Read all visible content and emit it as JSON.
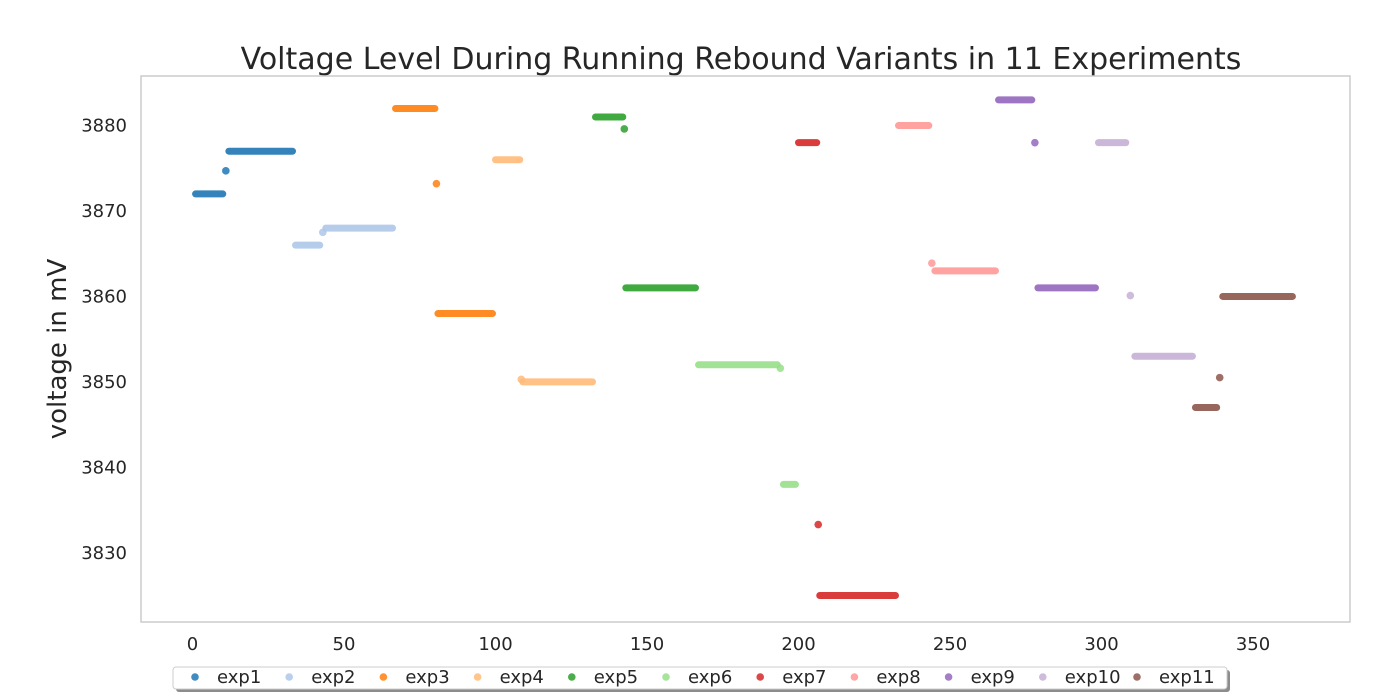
{
  "chart_data": {
    "type": "scatter",
    "title": "Voltage Level During Running Rebound Variants in 11 Experiments",
    "xlabel": "",
    "ylabel": "voltage  in mV",
    "xlim": [
      -17,
      382
    ],
    "ylim": [
      3821.9,
      3885.8
    ],
    "xticks": [
      0,
      50,
      100,
      150,
      200,
      250,
      300,
      350
    ],
    "yticks": [
      3830,
      3840,
      3850,
      3860,
      3870,
      3880
    ],
    "grid": false,
    "legend": "bottom-center",
    "series": [
      {
        "name": "exp1",
        "color": "#1f77b4",
        "points": [
          [
            1,
            3872
          ],
          [
            10,
            3872
          ],
          [
            11,
            3874.7
          ],
          [
            12,
            3877
          ],
          [
            33,
            3877
          ]
        ]
      },
      {
        "name": "exp2",
        "color": "#aec7e8",
        "points": [
          [
            34,
            3866
          ],
          [
            42,
            3866
          ],
          [
            43,
            3867.5
          ],
          [
            44,
            3868
          ],
          [
            66,
            3868
          ]
        ]
      },
      {
        "name": "exp3",
        "color": "#ff7f0e",
        "points": [
          [
            67,
            3882
          ],
          [
            80,
            3882
          ],
          [
            80.5,
            3873.2
          ],
          [
            81,
            3858
          ],
          [
            99,
            3858
          ]
        ]
      },
      {
        "name": "exp4",
        "color": "#ffbb78",
        "points": [
          [
            100,
            3876
          ],
          [
            108,
            3876
          ],
          [
            108.5,
            3850.3
          ],
          [
            109,
            3850
          ],
          [
            132,
            3850
          ]
        ]
      },
      {
        "name": "exp5",
        "color": "#2ca02c",
        "points": [
          [
            133,
            3881
          ],
          [
            142,
            3881
          ],
          [
            142.5,
            3879.6
          ],
          [
            143,
            3861
          ],
          [
            166,
            3861
          ]
        ]
      },
      {
        "name": "exp6",
        "color": "#98df8a",
        "points": [
          [
            167,
            3852
          ],
          [
            193,
            3852
          ],
          [
            194,
            3851.6
          ],
          [
            195,
            3838
          ],
          [
            199,
            3838
          ]
        ]
      },
      {
        "name": "exp7",
        "color": "#d62728",
        "points": [
          [
            200,
            3878
          ],
          [
            206,
            3878
          ],
          [
            206.5,
            3833.3
          ],
          [
            207,
            3825
          ],
          [
            232,
            3825
          ]
        ]
      },
      {
        "name": "exp8",
        "color": "#ff9896",
        "points": [
          [
            233,
            3880
          ],
          [
            243,
            3880
          ],
          [
            244,
            3863.9
          ],
          [
            245,
            3863
          ],
          [
            265,
            3863
          ]
        ]
      },
      {
        "name": "exp9",
        "color": "#9467bd",
        "points": [
          [
            266,
            3883
          ],
          [
            277,
            3883
          ],
          [
            278,
            3878
          ],
          [
            279,
            3861
          ],
          [
            298,
            3861
          ]
        ]
      },
      {
        "name": "exp10",
        "color": "#c5b0d5",
        "points": [
          [
            299,
            3878
          ],
          [
            308,
            3878
          ],
          [
            309.5,
            3860.1
          ],
          [
            311,
            3853
          ],
          [
            330,
            3853
          ]
        ]
      },
      {
        "name": "exp11",
        "color": "#8c564b",
        "points": [
          [
            331,
            3847
          ],
          [
            338,
            3847
          ],
          [
            339,
            3850.5
          ],
          [
            340,
            3860
          ],
          [
            363,
            3860
          ]
        ]
      }
    ]
  }
}
